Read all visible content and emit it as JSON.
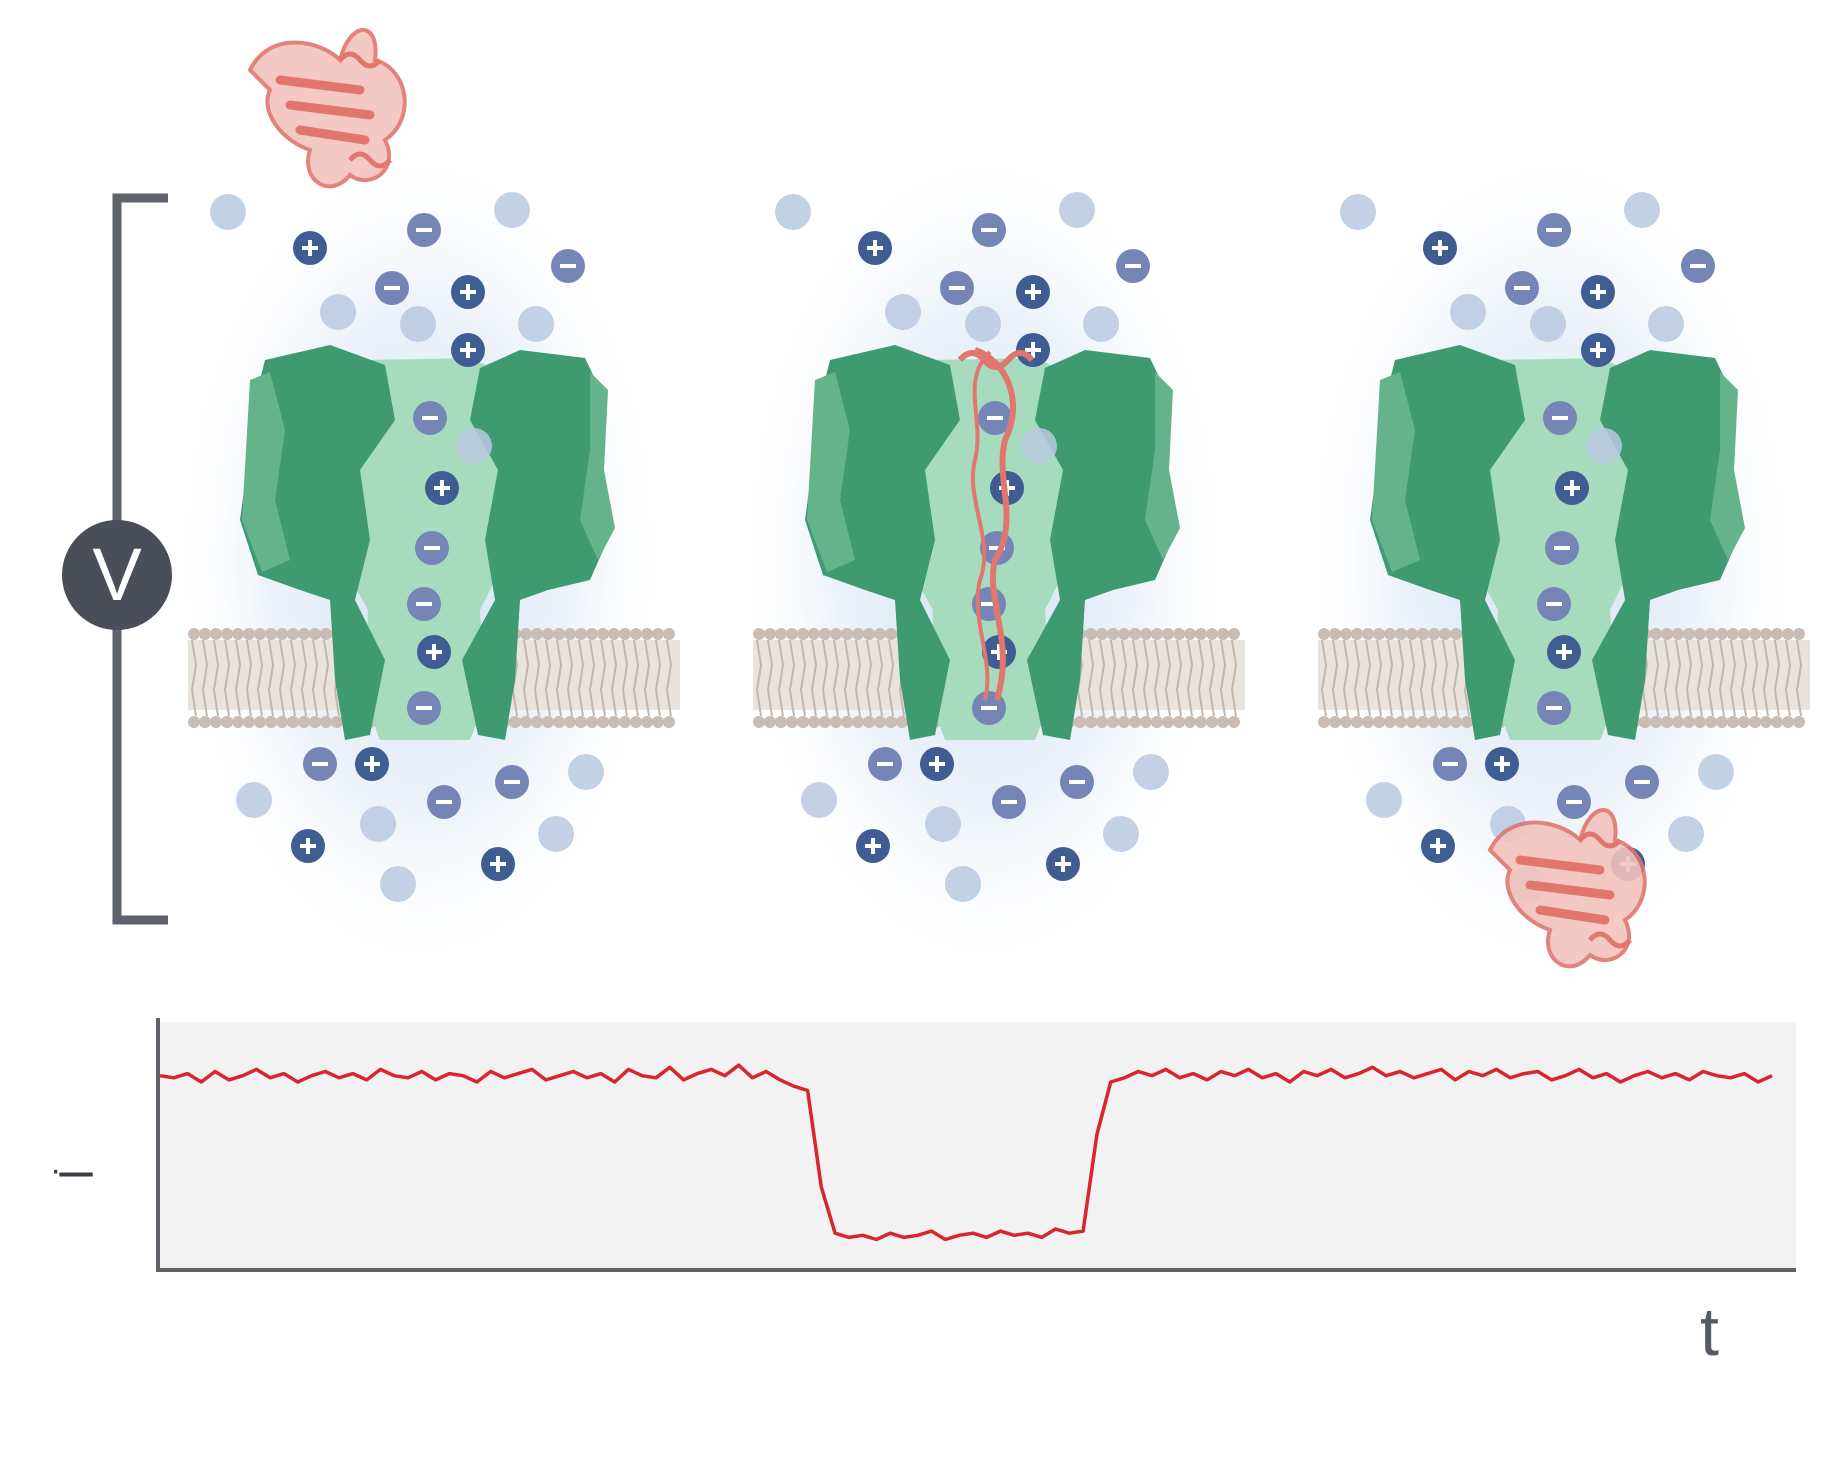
{
  "labels": {
    "voltage": "V",
    "current": "I",
    "time": "t"
  },
  "ions": {
    "positive_symbol": "+",
    "negative_symbol": "−"
  },
  "stages": [
    {
      "name": "stage-approach",
      "protein_position": "above-pore"
    },
    {
      "name": "stage-translocation",
      "protein_position": "inside-pore"
    },
    {
      "name": "stage-exit",
      "protein_position": "below-pore"
    }
  ],
  "colors": {
    "pore_dark": "#3f9a72",
    "pore_light": "#a6dcbd",
    "protein": "#e0766d",
    "ion_charged": "#3f5c93",
    "ion_neutral": "#b9c9e0",
    "membrane": "#c8bcb4",
    "trace": "#d8262c",
    "plot_bg": "#f2f2f3",
    "axis": "#5e626b",
    "bracket": "#5e626b"
  },
  "chart_data": {
    "type": "line",
    "xlabel": "t",
    "ylabel": "I",
    "x_ticks": [],
    "y_ticks": [],
    "series": [
      {
        "values": [
          0.83,
          0.82,
          0.84,
          0.8,
          0.85,
          0.81,
          0.83,
          0.86,
          0.82,
          0.84,
          0.8,
          0.83,
          0.85,
          0.82,
          0.84,
          0.81,
          0.86,
          0.83,
          0.82,
          0.85,
          0.81,
          0.84,
          0.83,
          0.8,
          0.85,
          0.82,
          0.84,
          0.86,
          0.81,
          0.83,
          0.85,
          0.82,
          0.84,
          0.8,
          0.86,
          0.83,
          0.82,
          0.87,
          0.81,
          0.84,
          0.86,
          0.83,
          0.88,
          0.82,
          0.85,
          0.81,
          0.78,
          0.76,
          0.3,
          0.08,
          0.06,
          0.07,
          0.05,
          0.08,
          0.06,
          0.07,
          0.09,
          0.05,
          0.07,
          0.08,
          0.06,
          0.09,
          0.07,
          0.08,
          0.06,
          0.1,
          0.08,
          0.09,
          0.55,
          0.8,
          0.82,
          0.85,
          0.83,
          0.86,
          0.82,
          0.84,
          0.81,
          0.85,
          0.83,
          0.86,
          0.82,
          0.84,
          0.8,
          0.85,
          0.83,
          0.86,
          0.82,
          0.84,
          0.87,
          0.83,
          0.85,
          0.82,
          0.84,
          0.86,
          0.81,
          0.85,
          0.83,
          0.86,
          0.82,
          0.84,
          0.85,
          0.81,
          0.83,
          0.86,
          0.82,
          0.84,
          0.8,
          0.83,
          0.85,
          0.82,
          0.84,
          0.81,
          0.85,
          0.83,
          0.82,
          0.84,
          0.8,
          0.83
        ]
      }
    ]
  }
}
